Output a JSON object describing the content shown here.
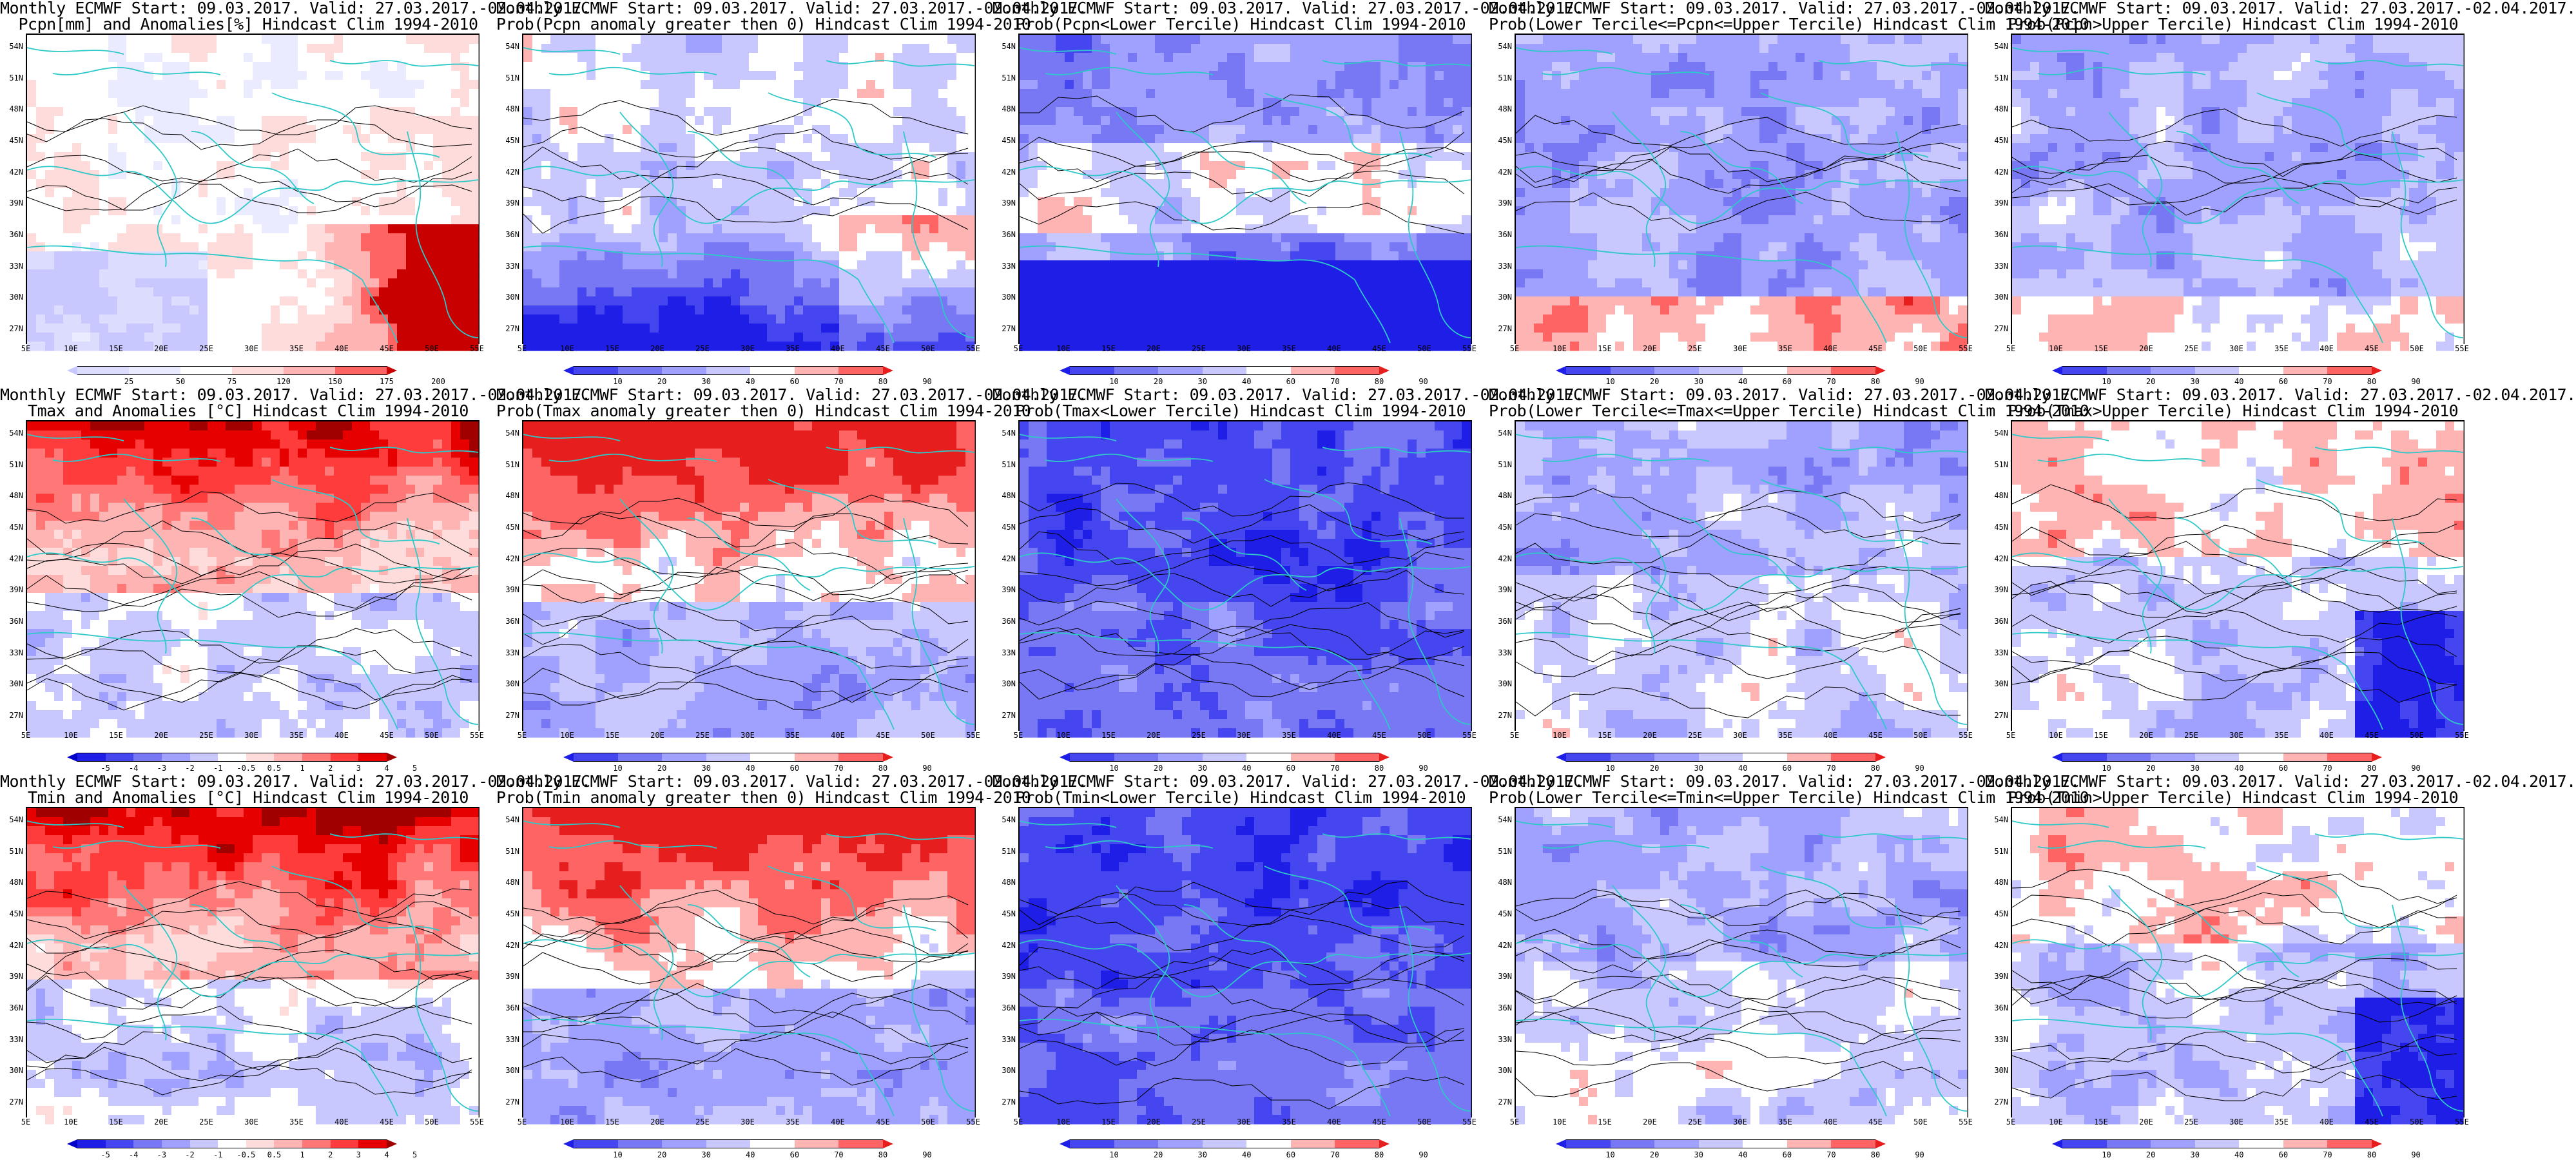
{
  "rows": [
    [
      {
        "title1": "Monthly ECMWF Start: 09.03.2017. Valid: 27.03.2017.-02.04.2017.",
        "title2": "Pcpn[mm] and Anomalies[%] Hindcast Clim 1994-2010",
        "type": "anom_pcpn",
        "colorbar": {
          "labels": [
            "25",
            "50",
            "75",
            "120",
            "150",
            "175",
            "200"
          ],
          "colors": [
            "#c8c8ff",
            "#dcdcff",
            "#ebebff",
            "#ffffff",
            "#ffdcdc",
            "#ffb4b4",
            "#ff6464",
            "#c80000"
          ]
        }
      },
      {
        "title1": "Monthly ECMWF Start: 09.03.2017. Valid: 27.03.2017.-02.04.2017.",
        "title2": "Prob(Pcpn anomaly greater then 0) Hindcast Clim 1994-2010",
        "type": "prob_pcpn_pos",
        "colorbar": {
          "labels": [
            "10",
            "20",
            "30",
            "40",
            "60",
            "70",
            "80",
            "90"
          ],
          "colors": [
            "#1e1ee6",
            "#4646f0",
            "#7878f5",
            "#a0a0ff",
            "#c8c8ff",
            "#ffffff",
            "#ffb4b4",
            "#ff6464",
            "#e61e1e"
          ]
        }
      },
      {
        "title1": "Monthly ECMWF Start: 09.03.2017. Valid: 27.03.2017.-02.04.2017.",
        "title2": "Prob(Pcpn<Lower Tercile) Hindcast Clim 1994-2010",
        "type": "prob_pcpn_low",
        "colorbar": {
          "labels": [
            "10",
            "20",
            "30",
            "40",
            "60",
            "70",
            "80",
            "90"
          ],
          "colors": [
            "#1e1ee6",
            "#4646f0",
            "#7878f5",
            "#a0a0ff",
            "#c8c8ff",
            "#ffffff",
            "#ffb4b4",
            "#ff6464",
            "#e61e1e"
          ]
        }
      },
      {
        "title1": "Monthly ECMWF Start: 09.03.2017. Valid: 27.03.2017.-02.04.2017.",
        "title2": "Prob(Lower Tercile<=Pcpn<=Upper Tercile) Hindcast Clim 1994-2010",
        "type": "prob_pcpn_mid",
        "colorbar": {
          "labels": [
            "10",
            "20",
            "30",
            "40",
            "60",
            "70",
            "80",
            "90"
          ],
          "colors": [
            "#1e1ee6",
            "#4646f0",
            "#7878f5",
            "#a0a0ff",
            "#c8c8ff",
            "#ffffff",
            "#ffb4b4",
            "#ff6464",
            "#e61e1e"
          ]
        }
      },
      {
        "title1": "Monthly ECMWF Start: 09.03.2017. Valid: 27.03.2017.-02.04.2017.",
        "title2": "Prob(Pcpn>Upper Tercile) Hindcast Clim 1994-2010",
        "type": "prob_pcpn_up",
        "colorbar": {
          "labels": [
            "10",
            "20",
            "30",
            "40",
            "60",
            "70",
            "80",
            "90"
          ],
          "colors": [
            "#1e1ee6",
            "#4646f0",
            "#7878f5",
            "#a0a0ff",
            "#c8c8ff",
            "#ffffff",
            "#ffb4b4",
            "#ff6464",
            "#e61e1e"
          ]
        }
      }
    ],
    [
      {
        "title1": "Monthly ECMWF Start: 09.03.2017. Valid: 27.03.2017.-02.04.2017.",
        "title2": "Tmax and Anomalies [°C] Hindcast Clim 1994-2010",
        "type": "anom_t",
        "colorbar": {
          "labels": [
            "-5",
            "-4",
            "-3",
            "-2",
            "-1",
            "-0.5",
            "0.5",
            "1",
            "2",
            "3",
            "4",
            "5"
          ],
          "colors": [
            "#0000c8",
            "#1e1ee6",
            "#4646f0",
            "#7878f5",
            "#a0a0ff",
            "#c8c8ff",
            "#ffffff",
            "#ffdcdc",
            "#ffb4b4",
            "#ff7878",
            "#ff3c3c",
            "#e60000",
            "#a00000"
          ]
        }
      },
      {
        "title1": "Monthly ECMWF Start: 09.03.2017. Valid: 27.03.2017.-02.04.2017.",
        "title2": "Prob(Tmax anomaly greater then 0) Hindcast Clim 1994-2010",
        "type": "prob_t_pos",
        "colorbar": {
          "labels": [
            "10",
            "20",
            "30",
            "40",
            "60",
            "70",
            "80",
            "90"
          ],
          "colors": [
            "#1e1ee6",
            "#4646f0",
            "#7878f5",
            "#a0a0ff",
            "#c8c8ff",
            "#ffffff",
            "#ffb4b4",
            "#ff6464",
            "#e61e1e"
          ]
        }
      },
      {
        "title1": "Monthly ECMWF Start: 09.03.2017. Valid: 27.03.2017.-02.04.2017.",
        "title2": "Prob(Tmax<Lower Tercile) Hindcast Clim 1994-2010",
        "type": "prob_t_low",
        "colorbar": {
          "labels": [
            "10",
            "20",
            "30",
            "40",
            "60",
            "70",
            "80",
            "90"
          ],
          "colors": [
            "#1e1ee6",
            "#4646f0",
            "#7878f5",
            "#a0a0ff",
            "#c8c8ff",
            "#ffffff",
            "#ffb4b4",
            "#ff6464",
            "#e61e1e"
          ]
        }
      },
      {
        "title1": "Monthly ECMWF Start: 09.03.2017. Valid: 27.03.2017.-02.04.2017.",
        "title2": "Prob(Lower Tercile<=Tmax<=Upper Tercile) Hindcast Clim 1994-2010",
        "type": "prob_t_mid",
        "colorbar": {
          "labels": [
            "10",
            "20",
            "30",
            "40",
            "60",
            "70",
            "80",
            "90"
          ],
          "colors": [
            "#1e1ee6",
            "#4646f0",
            "#7878f5",
            "#a0a0ff",
            "#c8c8ff",
            "#ffffff",
            "#ffb4b4",
            "#ff6464",
            "#e61e1e"
          ]
        }
      },
      {
        "title1": "Monthly ECMWF Start: 09.03.2017. Valid: 27.03.2017.-02.04.2017.",
        "title2": "Prob(Tmax>Upper Tercile) Hindcast Clim 1994-2010",
        "type": "prob_t_up",
        "colorbar": {
          "labels": [
            "10",
            "20",
            "30",
            "40",
            "60",
            "70",
            "80",
            "90"
          ],
          "colors": [
            "#1e1ee6",
            "#4646f0",
            "#7878f5",
            "#a0a0ff",
            "#c8c8ff",
            "#ffffff",
            "#ffb4b4",
            "#ff6464",
            "#e61e1e"
          ]
        }
      }
    ],
    [
      {
        "title1": "Monthly ECMWF Start: 09.03.2017. Valid: 27.03.2017.-02.04.2017.",
        "title2": "Tmin and Anomalies [°C] Hindcast Clim 1994-2010",
        "type": "anom_t",
        "colorbar": {
          "labels": [
            "-5",
            "-4",
            "-3",
            "-2",
            "-1",
            "-0.5",
            "0.5",
            "1",
            "2",
            "3",
            "4",
            "5"
          ],
          "colors": [
            "#0000c8",
            "#1e1ee6",
            "#4646f0",
            "#7878f5",
            "#a0a0ff",
            "#c8c8ff",
            "#ffffff",
            "#ffdcdc",
            "#ffb4b4",
            "#ff7878",
            "#ff3c3c",
            "#e60000",
            "#a00000"
          ]
        }
      },
      {
        "title1": "Monthly ECMWF Start: 09.03.2017. Valid: 27.03.2017.-02.04.2017.",
        "title2": "Prob(Tmin anomaly greater then 0) Hindcast Clim 1994-2010",
        "type": "prob_t_pos",
        "colorbar": {
          "labels": [
            "10",
            "20",
            "30",
            "40",
            "60",
            "70",
            "80",
            "90"
          ],
          "colors": [
            "#1e1ee6",
            "#4646f0",
            "#7878f5",
            "#a0a0ff",
            "#c8c8ff",
            "#ffffff",
            "#ffb4b4",
            "#ff6464",
            "#e61e1e"
          ]
        }
      },
      {
        "title1": "Monthly ECMWF Start: 09.03.2017. Valid: 27.03.2017.-02.04.2017.",
        "title2": "Prob(Tmin<Lower Tercile) Hindcast Clim 1994-2010",
        "type": "prob_t_low",
        "colorbar": {
          "labels": [
            "10",
            "20",
            "30",
            "40",
            "60",
            "70",
            "80",
            "90"
          ],
          "colors": [
            "#1e1ee6",
            "#4646f0",
            "#7878f5",
            "#a0a0ff",
            "#c8c8ff",
            "#ffffff",
            "#ffb4b4",
            "#ff6464",
            "#e61e1e"
          ]
        }
      },
      {
        "title1": "Monthly ECMWF Start: 09.03.2017. Valid: 27.03.2017.-02.04.2017.",
        "title2": "Prob(Lower Tercile<=Tmin<=Upper Tercile) Hindcast Clim 1994-2010",
        "type": "prob_t_mid",
        "colorbar": {
          "labels": [
            "10",
            "20",
            "30",
            "40",
            "60",
            "70",
            "80",
            "90"
          ],
          "colors": [
            "#1e1ee6",
            "#4646f0",
            "#7878f5",
            "#a0a0ff",
            "#c8c8ff",
            "#ffffff",
            "#ffb4b4",
            "#ff6464",
            "#e61e1e"
          ]
        }
      },
      {
        "title1": "Monthly ECMWF Start: 09.03.2017. Valid: 27.03.2017.-02.04.2017.",
        "title2": "Prob(Tmin>Upper Tercile) Hindcast Clim 1994-2010",
        "type": "prob_t_up",
        "colorbar": {
          "labels": [
            "10",
            "20",
            "30",
            "40",
            "60",
            "70",
            "80",
            "90"
          ],
          "colors": [
            "#1e1ee6",
            "#4646f0",
            "#7878f5",
            "#a0a0ff",
            "#c8c8ff",
            "#ffffff",
            "#ffb4b4",
            "#ff6464",
            "#e61e1e"
          ]
        }
      }
    ]
  ],
  "lat_labels": [
    "54N",
    "51N",
    "48N",
    "45N",
    "42N",
    "39N",
    "36N",
    "33N",
    "30N",
    "27N"
  ],
  "lon_labels": [
    "5E",
    "10E",
    "15E",
    "20E",
    "25E",
    "30E",
    "35E",
    "40E",
    "45E",
    "50E",
    "55E"
  ],
  "style": {
    "coastline_color": "#2ec8c8",
    "contour_color": "#000000"
  }
}
